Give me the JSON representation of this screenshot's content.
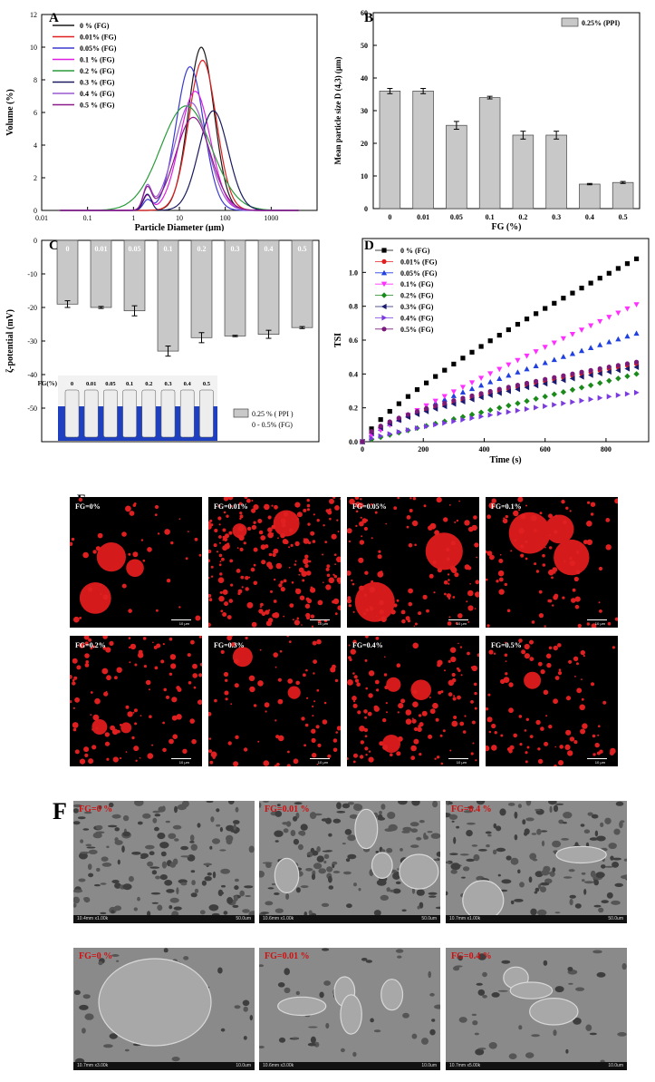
{
  "panels": {
    "A": "A",
    "B": "B",
    "C": "C",
    "D": "D",
    "E": "E",
    "F": "F"
  },
  "chart_data": [
    {
      "id": "A",
      "type": "line",
      "xlabel": "Particle Diameter (μm)",
      "ylabel": "Volume (%)",
      "xscale": "log",
      "xlim": [
        0.01,
        10000
      ],
      "ylim": [
        0,
        12
      ],
      "xticks": [
        "0.01",
        "0.1",
        "1",
        "10",
        "100",
        "1000"
      ],
      "yticks": [
        "0",
        "2",
        "4",
        "6",
        "8",
        "10",
        "12"
      ],
      "legend_position": "top-left",
      "colors": [
        "#1a1a1a",
        "#e02020",
        "#3a3ad0",
        "#e020e0",
        "#2a9a3a",
        "#1a1a60",
        "#9a5ad0",
        "#8a1a8a"
      ],
      "series": [
        {
          "name": "0 % (FG)",
          "peak": 30,
          "height": 10.0,
          "width": 0.28,
          "small": 0
        },
        {
          "name": "0.01% (FG)",
          "peak": 32,
          "height": 9.2,
          "width": 0.3,
          "small": 0
        },
        {
          "name": "0.05% (FG)",
          "peak": 17,
          "height": 8.8,
          "width": 0.3,
          "small": 0.6
        },
        {
          "name": "0.1 % (FG)",
          "peak": 22,
          "height": 7.3,
          "width": 0.33,
          "small": 0.9
        },
        {
          "name": "0.2 % (FG)",
          "peak": 14,
          "height": 6.4,
          "width": 0.55,
          "small": 0
        },
        {
          "name": "0.3 % (FG)",
          "peak": 55,
          "height": 6.1,
          "width": 0.32,
          "small": 1.0
        },
        {
          "name": "0.4 % (FG)",
          "peak": 18,
          "height": 6.6,
          "width": 0.36,
          "small": 1.4
        },
        {
          "name": "0.5 % (FG)",
          "peak": 20,
          "height": 5.7,
          "width": 0.38,
          "small": 1.3
        }
      ]
    },
    {
      "id": "B",
      "type": "bar",
      "xlabel": "FG (%)",
      "ylabel": "Mean particle size D (4,3) (μm)",
      "ylim": [
        0,
        60
      ],
      "yticks": [
        "0",
        "10",
        "20",
        "30",
        "40",
        "50",
        "60"
      ],
      "categories": [
        "0",
        "0.01",
        "0.05",
        "0.1",
        "0.2",
        "0.3",
        "0.4",
        "0.5"
      ],
      "values": [
        36,
        36,
        25.5,
        34,
        22.5,
        22.5,
        7.5,
        8
      ],
      "errors": [
        0.8,
        0.8,
        1.2,
        0.4,
        1.2,
        1.2,
        0.2,
        0.3
      ],
      "legend": "0.25% (PPI)",
      "legend_position": "top-right"
    },
    {
      "id": "C",
      "type": "bar",
      "ylabel": "ζ-potential (mV)",
      "ylim": [
        -60,
        0
      ],
      "yticks": [
        "0",
        "-10",
        "-20",
        "-30",
        "-40",
        "-50"
      ],
      "categories": [
        "0",
        "0.01",
        "0.05",
        "0.1",
        "0.2",
        "0.3",
        "0.4",
        "0.5"
      ],
      "values": [
        -19,
        -20,
        -21,
        -33,
        -29,
        -28.5,
        -28,
        -26
      ],
      "errors": [
        1,
        0.3,
        1.5,
        1.5,
        1.5,
        0.2,
        1.2,
        0.3
      ],
      "legend_lines": [
        "0.25 % ( PPI )",
        "0 - 0.5% (FG)"
      ],
      "legend_position": "bottom-right",
      "inset_label": "FG(%)",
      "inset_values": [
        "0",
        "0.01",
        "0.05",
        "0.1",
        "0.2",
        "0.3",
        "0.4",
        "0.5"
      ]
    },
    {
      "id": "D",
      "type": "scatter",
      "xlabel": "Time (s)",
      "ylabel": "TSI",
      "xlim": [
        0,
        940
      ],
      "ylim": [
        0,
        1.2
      ],
      "xticks": [
        "0",
        "200",
        "400",
        "600",
        "800"
      ],
      "yticks": [
        "0.0",
        "0.2",
        "0.4",
        "0.6",
        "0.8",
        "1.0"
      ],
      "legend_position": "top-left",
      "series": [
        {
          "name": "0 % (FG)",
          "color": "#000000",
          "marker": "square",
          "final": 1.08,
          "curve": 0.78
        },
        {
          "name": "0.01% (FG)",
          "color": "#e02020",
          "marker": "circle",
          "final": 0.46,
          "curve": 0.62
        },
        {
          "name": "0.05% (FG)",
          "color": "#2040e0",
          "marker": "triangle-up",
          "final": 0.64,
          "curve": 0.78
        },
        {
          "name": "0.1% (FG)",
          "color": "#ff30ff",
          "marker": "triangle-down",
          "final": 0.81,
          "curve": 0.92
        },
        {
          "name": "0.2% (FG)",
          "color": "#1a8a1a",
          "marker": "diamond",
          "final": 0.4,
          "curve": 1.0
        },
        {
          "name": "0.3% (FG)",
          "color": "#1a1a70",
          "marker": "triangle-left",
          "final": 0.44,
          "curve": 0.62
        },
        {
          "name": "0.4% (FG)",
          "color": "#7a3ae0",
          "marker": "triangle-right",
          "final": 0.29,
          "curve": 0.8
        },
        {
          "name": "0.5% (FG)",
          "color": "#7a1a7a",
          "marker": "circle",
          "final": 0.47,
          "curve": 0.6
        }
      ]
    }
  ],
  "confocal": {
    "labels": [
      "FG=0%",
      "FG=0.01%",
      "FG=0.05%",
      "FG=0.1%",
      "FG=0.2%",
      "FG=0.3%",
      "FG=0.4%",
      "FG=0.5%"
    ],
    "scalebar": "10 μm"
  },
  "sem": {
    "labels": [
      "FG=0 %",
      "FG=0.01 %",
      "FG=0.4 %",
      "FG=0 %",
      "FG=0.01 %",
      "FG=0.4 %"
    ],
    "info": [
      [
        "10.4mm x1.00k",
        "50.0um"
      ],
      [
        "10.6mm x1.00k",
        "50.0um"
      ],
      [
        "10.7mm x1.00k",
        "50.0um"
      ],
      [
        "10.7mm x3.00k",
        "10.0um"
      ],
      [
        "10.6mm x3.00k",
        "10.0um"
      ],
      [
        "10.7mm x5.00k",
        "10.0um"
      ]
    ]
  }
}
